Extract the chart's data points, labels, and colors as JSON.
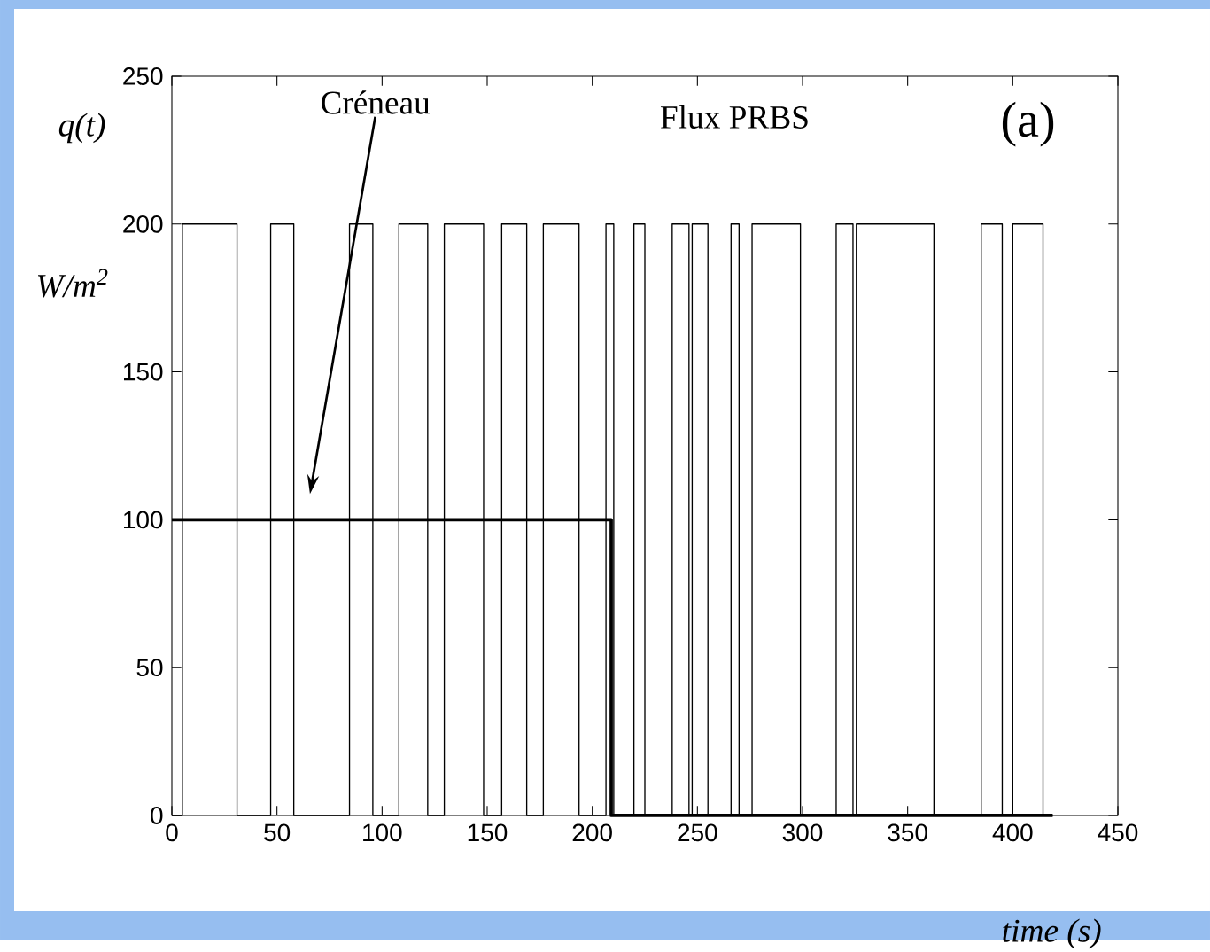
{
  "chart_data": {
    "type": "step",
    "xlabel": "time (s)",
    "ylabel": "q(t)",
    "xlim": [
      0,
      450
    ],
    "ylim": [
      0,
      250
    ],
    "xticks": [
      0,
      50,
      100,
      150,
      200,
      250,
      300,
      350,
      400,
      450
    ],
    "yticks": [
      0,
      50,
      100,
      150,
      200,
      250
    ],
    "grid": false,
    "series": [
      {
        "color": "#000000",
        "x": [
          0,
          5,
          31,
          47,
          58,
          84.5,
          95.6,
          108,
          121.7,
          129.6,
          148.3,
          156.9,
          168.8,
          176.7,
          193.7,
          206.5,
          210.2,
          219.8,
          225,
          238,
          246,
          247.5,
          255,
          266,
          269.8,
          276,
          299,
          316,
          324,
          325.6,
          362.5,
          385,
          395,
          400,
          414.4,
          419
        ],
        "values": [
          0,
          200,
          0,
          200,
          0,
          200,
          0,
          200,
          0,
          200,
          0,
          200,
          0,
          200,
          0,
          200,
          0,
          200,
          0,
          200,
          0,
          200,
          0,
          200,
          0,
          200,
          0,
          200,
          0,
          200,
          0,
          200,
          0,
          200,
          0,
          0
        ]
      },
      {
        "color": "#000000",
        "x": [
          0,
          209,
          419
        ],
        "values": [
          100,
          0,
          0
        ]
      }
    ],
    "annotations": [
      "Créneau",
      "Flux PRBS",
      "(a)",
      "W/m$^{2}$"
    ]
  }
}
